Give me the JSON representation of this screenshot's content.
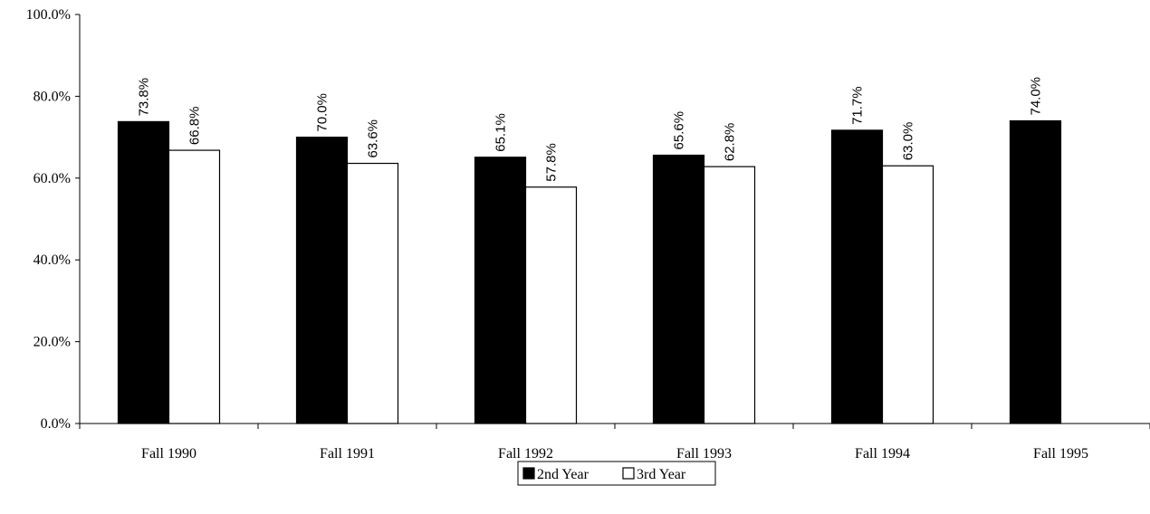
{
  "chart_data": {
    "type": "bar",
    "title": "",
    "xlabel": "",
    "ylabel": "",
    "categories": [
      "Fall 1990",
      "Fall 1991",
      "Fall 1992",
      "Fall 1993",
      "Fall 1994",
      "Fall 1995"
    ],
    "series": [
      {
        "name": "2nd Year",
        "color": "#000000",
        "values": [
          73.8,
          70.0,
          65.1,
          65.6,
          71.7,
          74.0
        ],
        "labels": [
          "73.8%",
          "70.0%",
          "65.1%",
          "65.6%",
          "71.7%",
          "74.0%"
        ]
      },
      {
        "name": "3rd Year",
        "color": "#ffffff",
        "values": [
          66.8,
          63.6,
          57.8,
          62.8,
          63.0,
          null
        ],
        "labels": [
          "66.8%",
          "63.6%",
          "57.8%",
          "62.8%",
          "63.0%",
          null
        ]
      }
    ],
    "ylim": [
      0,
      100
    ],
    "yticks": [
      0,
      20,
      40,
      60,
      80,
      100
    ],
    "ytick_labels": [
      "0.0%",
      "20.0%",
      "40.0%",
      "60.0%",
      "80.0%",
      "100.0%"
    ],
    "grid": false,
    "legend_position": "bottom-center"
  }
}
